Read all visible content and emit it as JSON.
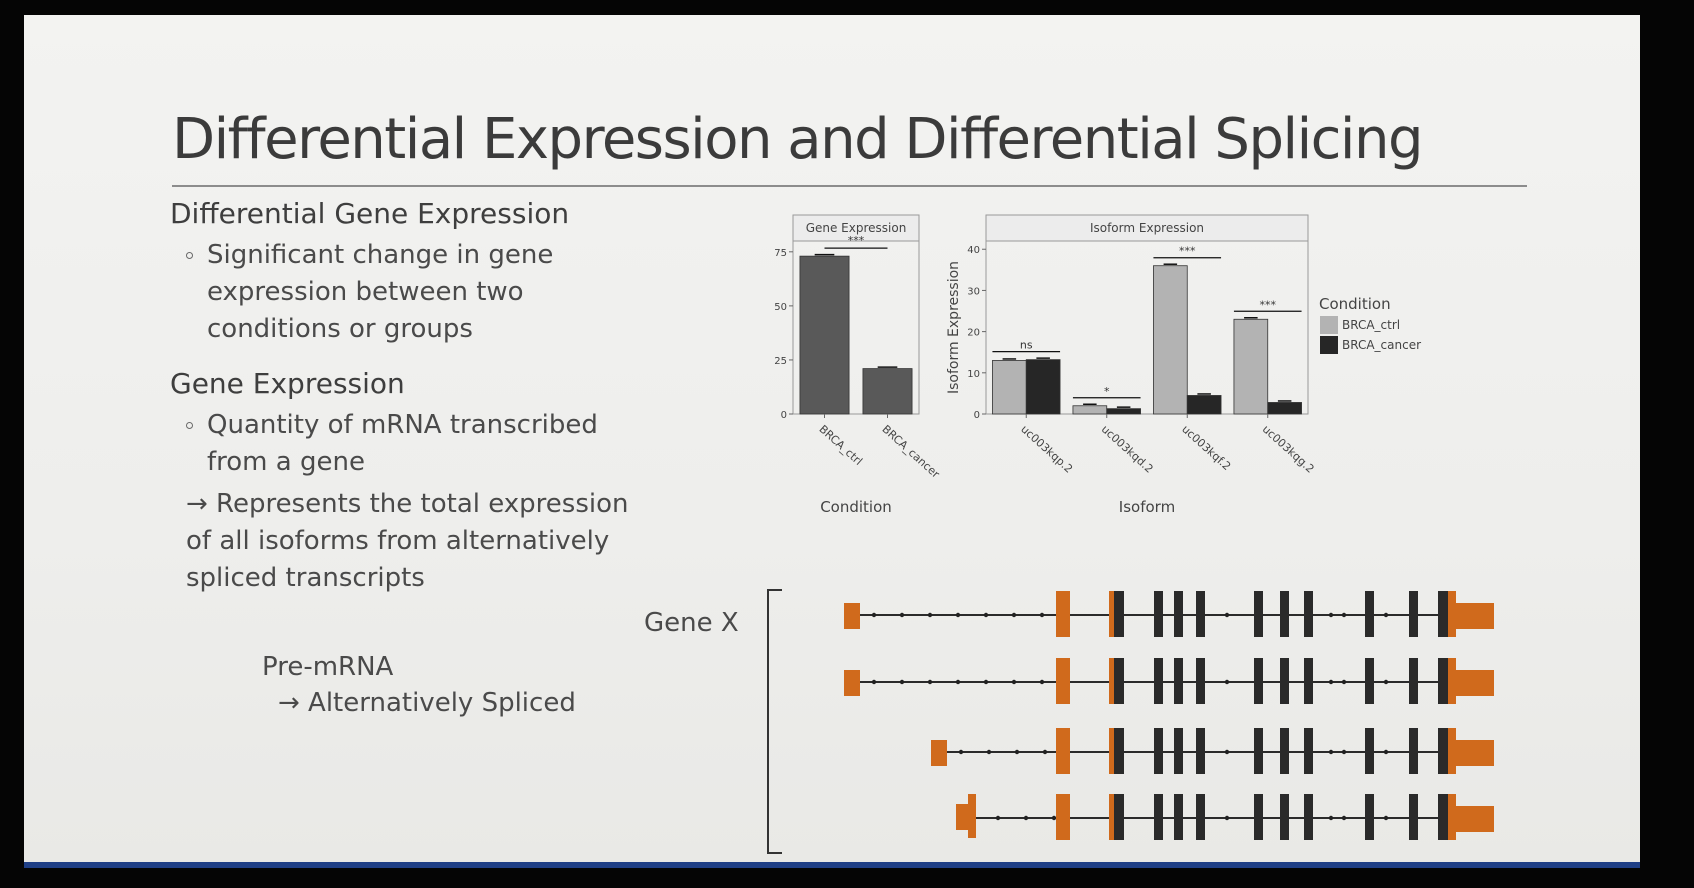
{
  "slide": {
    "title": "Differential Expression and Differential Splicing",
    "left": {
      "heading1": "Differential Gene Expression",
      "bullet1_lines": [
        "Significant change in gene",
        "expression between two",
        "conditions or groups"
      ],
      "heading2": "Gene Expression",
      "bullet2_lines": [
        "Quantity of mRNA transcribed",
        "from a gene"
      ],
      "arrow_lines": [
        "→ Represents the total expression",
        "of all isoforms from alternatively",
        "spliced transcripts"
      ],
      "premrna": "Pre-mRNA",
      "alt_spliced": "→ Alternatively Spliced",
      "gene_label": "Gene X"
    }
  },
  "colors": {
    "ctrl": "#b3b3b3",
    "cancer": "#262626",
    "gene_bar": "#595959",
    "exon_orange": "#d06a1c",
    "exon_dark": "#2a2a2a",
    "accent_bar": "#1f3f86"
  },
  "chart_data": [
    {
      "type": "bar",
      "panel_title": "Gene Expression",
      "ylabel": "Gene Expression",
      "xlabel": "Condition",
      "categories": [
        "BRCA_ctrl",
        "BRCA_cancer"
      ],
      "values": [
        73,
        21
      ],
      "ylim": [
        0,
        80
      ],
      "yticks": [
        0,
        25,
        50,
        75
      ],
      "significance": [
        {
          "label": "***",
          "between": [
            "BRCA_ctrl",
            "BRCA_cancer"
          ]
        }
      ],
      "grid": false
    },
    {
      "type": "bar",
      "panel_title": "Isoform Expression",
      "ylabel": "Isoform Expression",
      "xlabel": "Isoform",
      "categories": [
        "uc003kqp.2",
        "uc003kqd.2",
        "uc003kqf.2",
        "uc003kqg.2"
      ],
      "series": [
        {
          "name": "BRCA_ctrl",
          "values": [
            13,
            2,
            36,
            23
          ]
        },
        {
          "name": "BRCA_cancer",
          "values": [
            13.2,
            1.3,
            4.5,
            2.8
          ]
        }
      ],
      "significance": [
        "ns",
        "*",
        "***",
        "***"
      ],
      "ylim": [
        0,
        42
      ],
      "yticks": [
        0,
        10,
        20,
        30,
        40
      ],
      "legend_title": "Condition",
      "legend_position": "right",
      "grid": false
    }
  ]
}
